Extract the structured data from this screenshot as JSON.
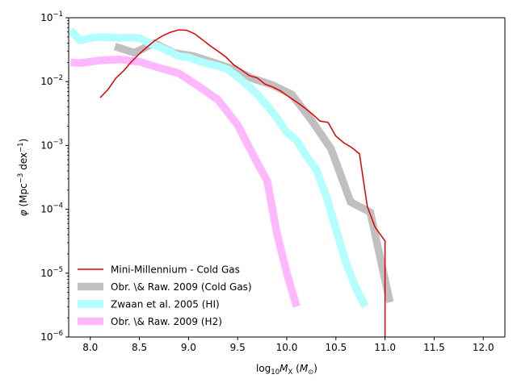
{
  "chart_data": {
    "type": "line",
    "xlabel": "log10MX (M⊙)",
    "ylabel": "φ (Mpc−3 dex−1)",
    "xlim": [
      7.78,
      12.22
    ],
    "ylim": [
      1e-06,
      0.1
    ],
    "yscale": "log",
    "x_ticks": [
      8.0,
      8.5,
      9.0,
      9.5,
      10.0,
      10.5,
      11.0,
      11.5,
      12.0
    ],
    "x_tick_labels": [
      "8.0",
      "8.5",
      "9.0",
      "9.5",
      "10.0",
      "10.5",
      "11.0",
      "11.5",
      "12.0"
    ],
    "y_ticks": [
      1e-06,
      1e-05,
      0.0001,
      0.001,
      0.01,
      0.1
    ],
    "y_tick_labels": [
      {
        "base": "10",
        "exp": "−6"
      },
      {
        "base": "10",
        "exp": "−5"
      },
      {
        "base": "10",
        "exp": "−4"
      },
      {
        "base": "10",
        "exp": "−3"
      },
      {
        "base": "10",
        "exp": "−2"
      },
      {
        "base": "10",
        "exp": "−1"
      }
    ],
    "legend_position": "lower-left",
    "series": [
      {
        "name": "Mini-Millennium - Cold Gas",
        "color": "#e00000",
        "style": "thin",
        "x": [
          8.1,
          8.18,
          8.26,
          8.34,
          8.42,
          8.5,
          8.58,
          8.66,
          8.74,
          8.82,
          8.9,
          8.98,
          9.06,
          9.14,
          9.22,
          9.3,
          9.38,
          9.46,
          9.54,
          9.62,
          9.7,
          9.78,
          9.86,
          9.94,
          10.02,
          10.1,
          10.18,
          10.26,
          10.34,
          10.42,
          10.5,
          10.58,
          10.66,
          10.74,
          10.82,
          10.9,
          11.0,
          11.0
        ],
        "y": [
          0.0056,
          0.0075,
          0.0113,
          0.0148,
          0.0205,
          0.0273,
          0.035,
          0.0442,
          0.0525,
          0.0595,
          0.0645,
          0.0637,
          0.0562,
          0.0455,
          0.0364,
          0.0299,
          0.0243,
          0.0183,
          0.0152,
          0.0124,
          0.0114,
          0.0091,
          0.0082,
          0.0071,
          0.0058,
          0.0048,
          0.0039,
          0.0031,
          0.0024,
          0.0023,
          0.0014,
          0.0011,
          0.00093,
          0.00074,
          0.00011,
          5.2e-05,
          3.2e-05,
          1e-06
        ]
      },
      {
        "name": "Obr. \\& Raw. 2009 (Cold Gas)",
        "color": "#c0c0c0",
        "style": "thick",
        "x": [
          8.25,
          8.45,
          8.65,
          8.85,
          9.05,
          9.25,
          9.45,
          9.65,
          9.85,
          10.05,
          10.25,
          10.45,
          10.65,
          10.85,
          11.05
        ],
        "y": [
          0.0355,
          0.0282,
          0.04,
          0.0282,
          0.0251,
          0.02,
          0.0158,
          0.0112,
          0.0089,
          0.0063,
          0.0025,
          0.00089,
          0.00013,
          9e-05,
          3.5e-06
        ]
      },
      {
        "name": "Zwaan et al. 2005 (HI)",
        "color": "#b3ffff",
        "style": "thick",
        "x": [
          7.8,
          7.9,
          8.0,
          8.1,
          8.2,
          8.3,
          8.4,
          8.5,
          8.6,
          8.7,
          8.8,
          8.9,
          9.0,
          9.1,
          9.2,
          9.3,
          9.4,
          9.5,
          9.6,
          9.7,
          9.8,
          9.9,
          10.0,
          10.1,
          10.2,
          10.3,
          10.4,
          10.5,
          10.6,
          10.7,
          10.8
        ],
        "y": [
          0.063,
          0.044,
          0.048,
          0.05,
          0.049,
          0.048,
          0.049,
          0.048,
          0.04,
          0.035,
          0.03,
          0.025,
          0.024,
          0.021,
          0.019,
          0.0175,
          0.0155,
          0.0118,
          0.0088,
          0.0063,
          0.0042,
          0.0027,
          0.0016,
          0.0012,
          0.00068,
          0.00042,
          0.000165,
          5e-05,
          1.5e-05,
          6e-06,
          3e-06
        ]
      },
      {
        "name": "Obr. \\& Raw. 2009 (H2)",
        "color": "#ffb8ff",
        "style": "thick",
        "x": [
          7.8,
          7.9,
          8.1,
          8.3,
          8.5,
          8.7,
          8.9,
          9.1,
          9.3,
          9.5,
          9.7,
          9.8,
          9.9,
          10.0,
          10.1
        ],
        "y": [
          0.02,
          0.0195,
          0.0215,
          0.0222,
          0.0205,
          0.0165,
          0.0135,
          0.0085,
          0.0052,
          0.0021,
          0.00053,
          0.00028,
          4.2e-05,
          1e-05,
          3e-06
        ]
      }
    ]
  }
}
